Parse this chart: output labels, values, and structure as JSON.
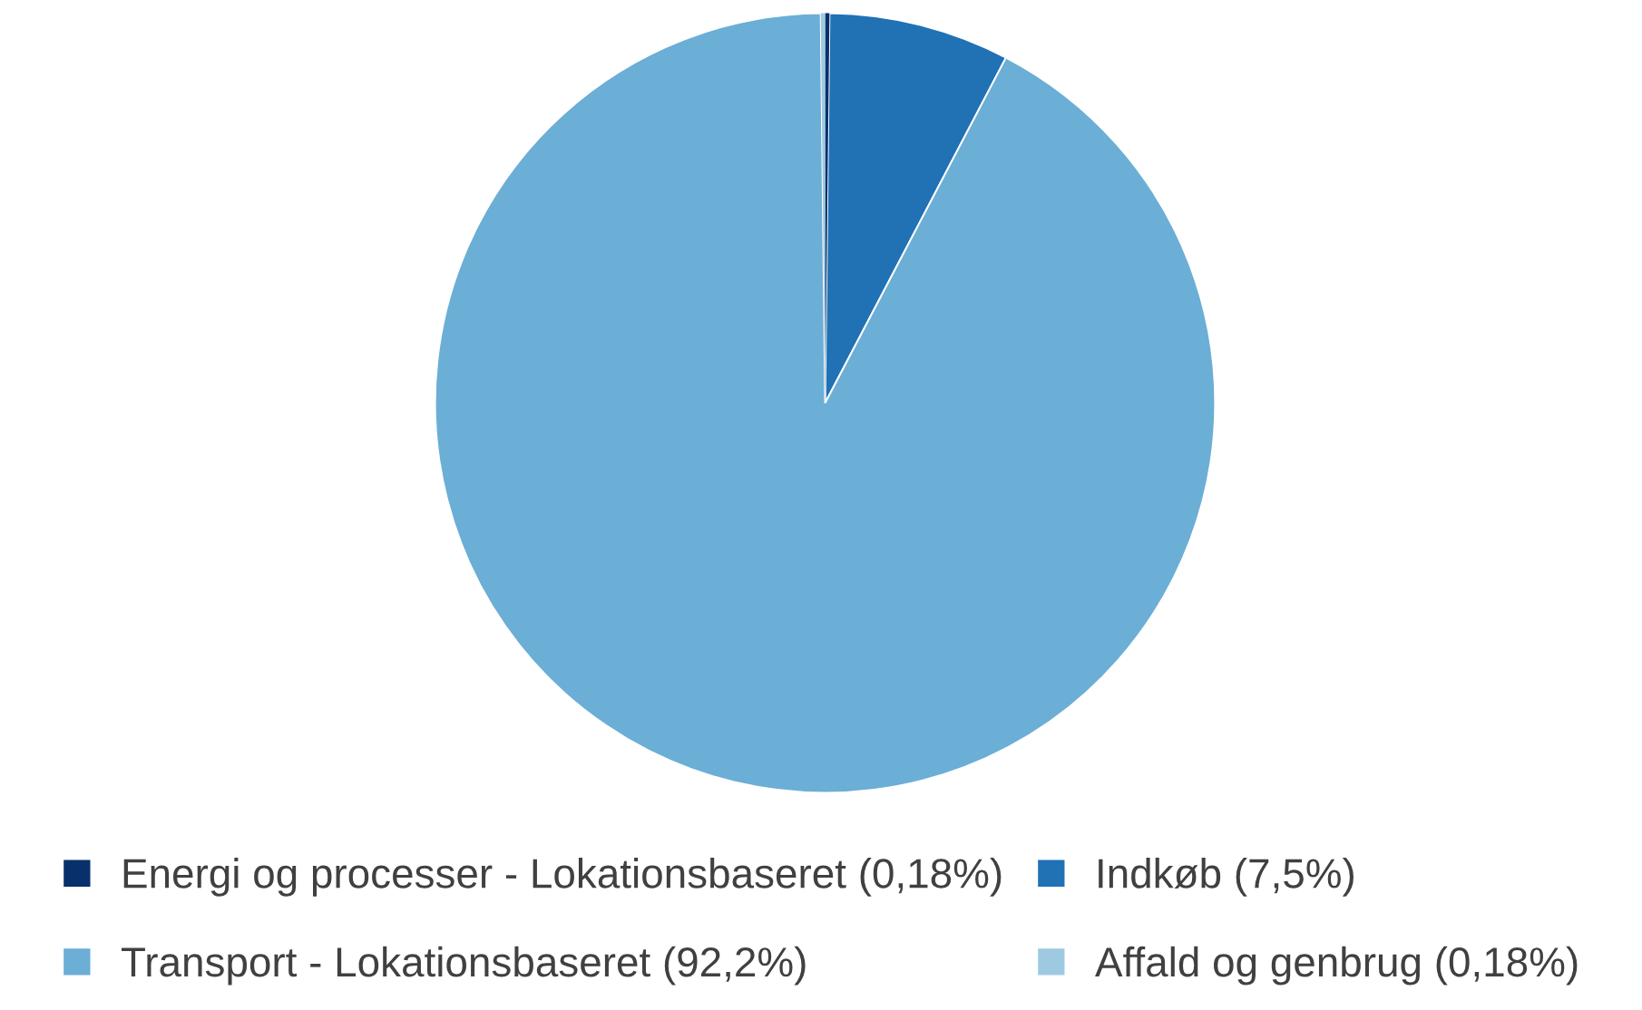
{
  "chart_data": {
    "type": "pie",
    "categories": [
      "Energi og processer - Lokationsbaseret (0,18%)",
      "Indkøb (7,5%)",
      "Transport - Lokationsbaseret (92,2%)",
      "Affald og genbrug (0,18%)"
    ],
    "values": [
      0.18,
      7.5,
      92.2,
      0.18
    ],
    "colors": [
      "#08306b",
      "#2171b5",
      "#6baed6",
      "#9ecae1"
    ],
    "legend": "bottom"
  }
}
